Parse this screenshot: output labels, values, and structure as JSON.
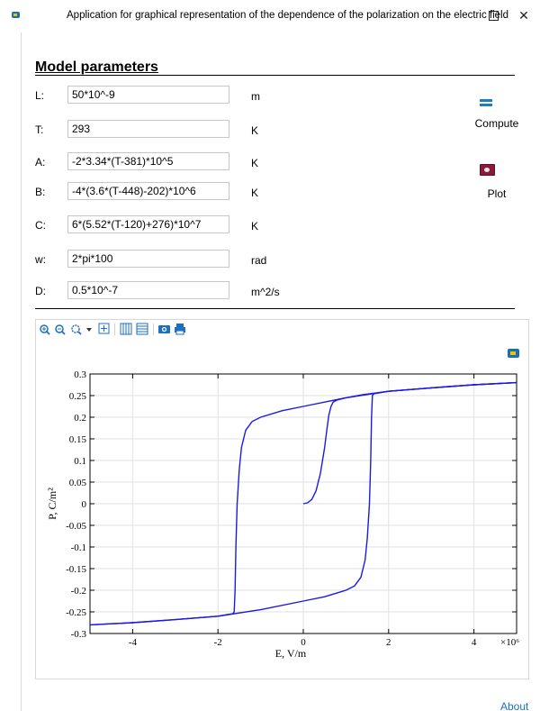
{
  "window": {
    "title": "Application for graphical representation of the dependence of the polarization on the electric field",
    "maximize_icon": "maximize-icon",
    "close_icon": "close-icon",
    "close_glyph": "✕"
  },
  "model": {
    "heading": "Model parameters",
    "params": [
      {
        "label": "L:",
        "value": "50*10^-9",
        "unit": "m"
      },
      {
        "label": "T:",
        "value": "293",
        "unit": "K"
      },
      {
        "label": "A:",
        "value": "-2*3.34*(T-381)*10^5",
        "unit": "K"
      },
      {
        "label": "B:",
        "value": "-4*(3.6*(T-448)-202)*10^6",
        "unit": "K"
      },
      {
        "label": "C:",
        "value": "6*(5.52*(T-120)+276)*10^7",
        "unit": "K"
      },
      {
        "label": "w:",
        "value": "2*pi*100",
        "unit": "rad"
      },
      {
        "label": "D:",
        "value": "0.5*10^-7",
        "unit": "m^2/s"
      }
    ]
  },
  "buttons": {
    "compute": {
      "label": "Compute",
      "icon": "compute-icon"
    },
    "plot": {
      "label": "Plot",
      "icon": "plot-icon"
    }
  },
  "toolbar": {
    "icons": [
      "zoom-in-icon",
      "zoom-out-icon",
      "zoom-box-icon",
      "zoom-extents-icon",
      "show-grid-icon",
      "legend-icon",
      "screenshot-icon",
      "print-icon"
    ]
  },
  "footer": {
    "about_label": "About"
  },
  "chart_data": {
    "type": "line",
    "xlabel": "E, V/m",
    "ylabel": "P, C/m²",
    "xlim": [
      -5,
      5
    ],
    "x_multiplier": "×10⁶",
    "ylim": [
      -0.3,
      0.3
    ],
    "x_ticks": [
      -4,
      -2,
      0,
      2,
      4
    ],
    "y_ticks": [
      0.3,
      0.25,
      0.2,
      0.15,
      0.1,
      0.05,
      0,
      -0.05,
      -0.1,
      -0.15,
      -0.2,
      -0.25,
      -0.3
    ],
    "line_color": "#1a1ae6",
    "series": [
      {
        "x": [
          0,
          0.1,
          0.2,
          0.3,
          0.4,
          0.5,
          0.55,
          0.6,
          0.65,
          0.7,
          0.8,
          1.0,
          1.4,
          2.0,
          3.0,
          4.0,
          5.0
        ],
        "y": [
          0,
          0.002,
          0.01,
          0.03,
          0.07,
          0.13,
          0.17,
          0.205,
          0.225,
          0.235,
          0.24,
          0.245,
          0.252,
          0.26,
          0.268,
          0.275,
          0.28
        ]
      },
      {
        "x": [
          5.0,
          4.0,
          3.0,
          2.0,
          1.0,
          0,
          -0.5,
          -1.0,
          -1.2,
          -1.35,
          -1.45,
          -1.5,
          -1.55,
          -1.58,
          -1.6,
          -1.62,
          -1.65,
          -1.7,
          -2.0,
          -3.0,
          -4.0,
          -5.0
        ],
        "y": [
          0.28,
          0.275,
          0.268,
          0.26,
          0.245,
          0.225,
          0.215,
          0.2,
          0.19,
          0.17,
          0.13,
          0.08,
          0.0,
          -0.1,
          -0.2,
          -0.25,
          -0.254,
          -0.255,
          -0.26,
          -0.268,
          -0.275,
          -0.28
        ]
      },
      {
        "x": [
          -5.0,
          -4.0,
          -3.0,
          -2.0,
          -1.0,
          0,
          0.5,
          1.0,
          1.2,
          1.35,
          1.45,
          1.5,
          1.55,
          1.58,
          1.6,
          1.62,
          1.65,
          1.7,
          2.0,
          3.0,
          4.0,
          5.0
        ],
        "y": [
          -0.28,
          -0.275,
          -0.268,
          -0.26,
          -0.245,
          -0.225,
          -0.215,
          -0.2,
          -0.19,
          -0.17,
          -0.13,
          -0.08,
          0.0,
          0.1,
          0.2,
          0.25,
          0.254,
          0.255,
          0.26,
          0.268,
          0.275,
          0.28
        ]
      }
    ]
  }
}
